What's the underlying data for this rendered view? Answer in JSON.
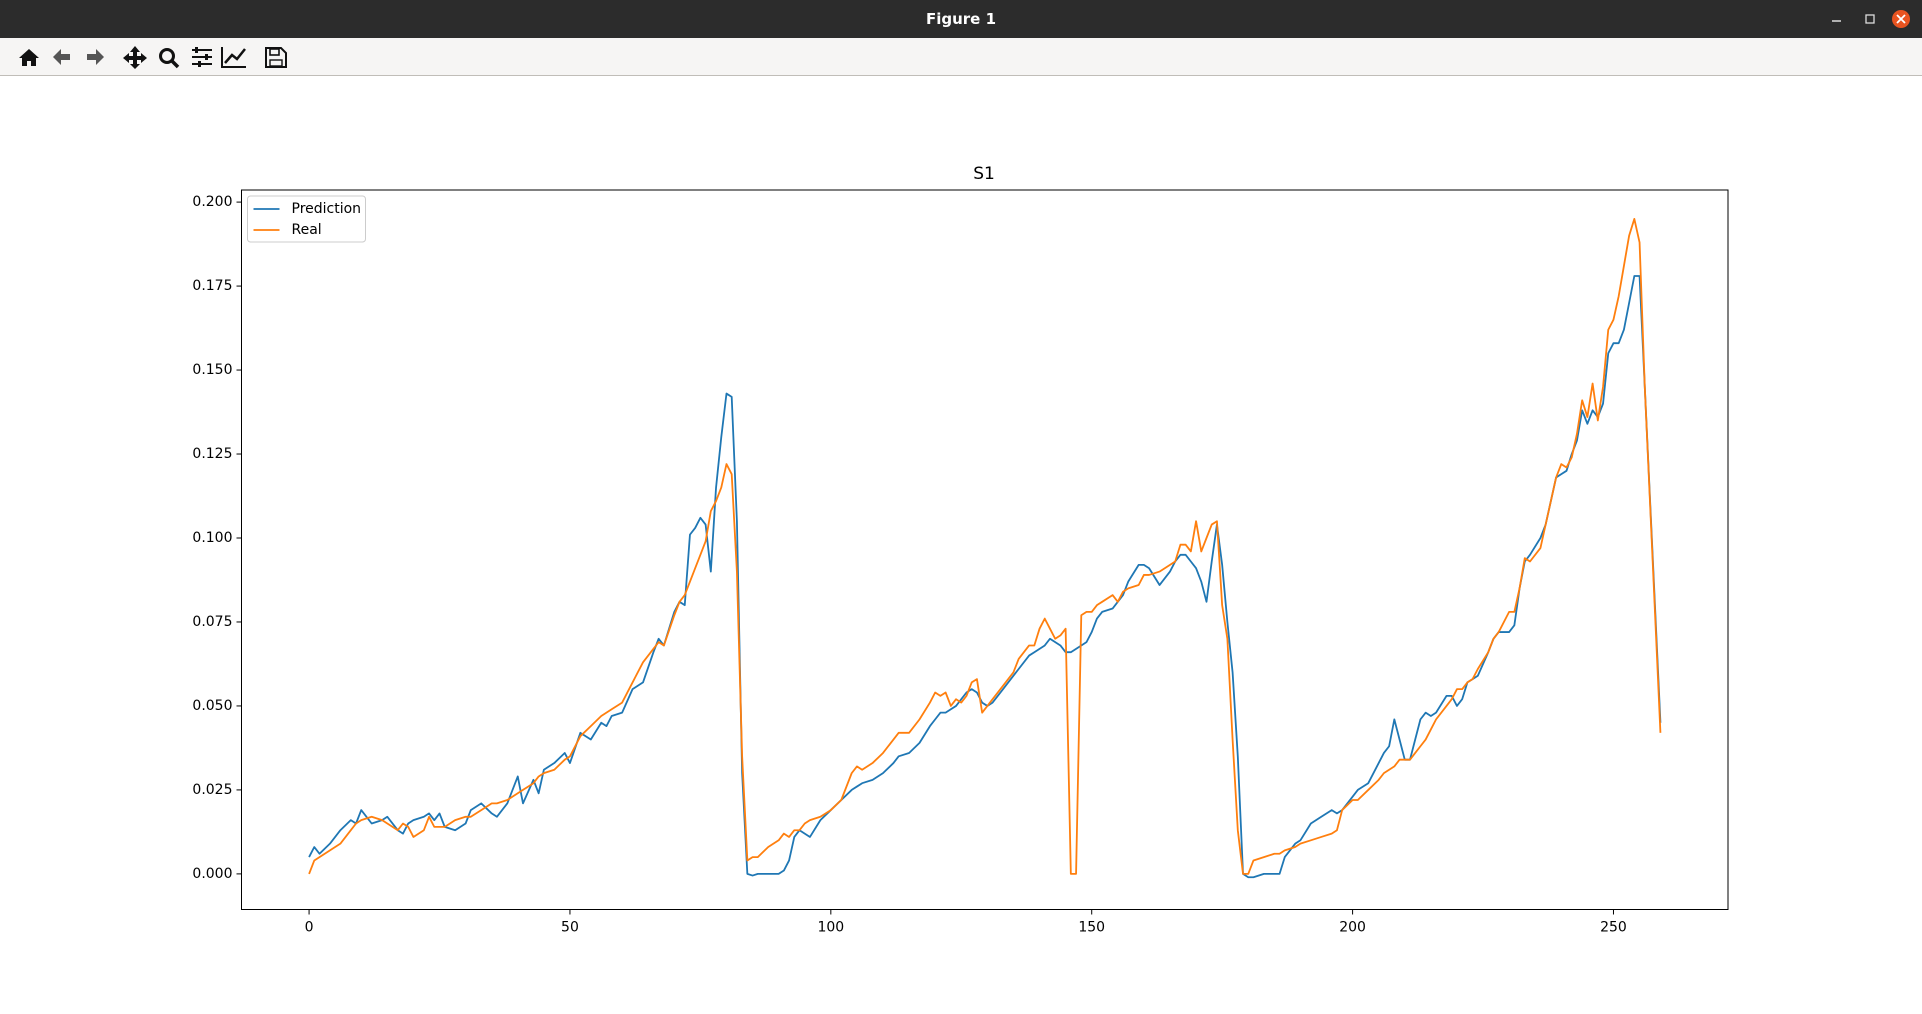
{
  "window": {
    "title": "Figure 1"
  },
  "chart_data": {
    "type": "line",
    "title": "S1",
    "x": [
      0,
      1,
      2,
      4,
      6,
      8,
      9,
      10,
      12,
      14,
      15,
      17,
      18,
      19,
      20,
      22,
      23,
      24,
      25,
      26,
      28,
      30,
      31,
      33,
      35,
      36,
      38,
      40,
      41,
      43,
      44,
      45,
      47,
      49,
      50,
      52,
      54,
      56,
      57,
      58,
      60,
      62,
      64,
      66,
      67,
      68,
      70,
      71,
      72,
      73,
      74,
      75,
      76,
      77,
      78,
      79,
      80,
      81,
      82,
      83,
      84,
      85,
      86,
      88,
      90,
      91,
      92,
      93,
      94,
      95,
      96,
      98,
      100,
      102,
      104,
      105,
      106,
      108,
      110,
      112,
      113,
      115,
      117,
      119,
      120,
      121,
      122,
      123,
      124,
      125,
      126,
      127,
      128,
      129,
      130,
      131,
      133,
      135,
      136,
      138,
      139,
      140,
      141,
      142,
      143,
      144,
      145,
      146,
      147,
      148,
      149,
      150,
      151,
      152,
      154,
      155,
      156,
      157,
      159,
      160,
      161,
      163,
      165,
      166,
      167,
      168,
      169,
      170,
      171,
      172,
      173,
      174,
      175,
      176,
      177,
      178,
      179,
      180,
      181,
      183,
      185,
      186,
      187,
      189,
      190,
      192,
      194,
      196,
      197,
      198,
      200,
      201,
      203,
      205,
      206,
      207,
      208,
      209,
      210,
      211,
      212,
      213,
      214,
      215,
      216,
      218,
      219,
      220,
      221,
      222,
      223,
      224,
      226,
      227,
      228,
      230,
      231,
      232,
      233,
      234,
      236,
      237,
      238,
      239,
      240,
      241,
      242,
      243,
      244,
      245,
      246,
      247,
      248,
      249,
      250,
      251,
      252,
      253,
      254,
      255,
      256,
      259
    ],
    "series": [
      {
        "name": "Prediction",
        "color": "#1f77b4",
        "values": [
          0.005,
          0.008,
          0.006,
          0.009,
          0.013,
          0.016,
          0.015,
          0.019,
          0.015,
          0.016,
          0.017,
          0.013,
          0.012,
          0.015,
          0.016,
          0.017,
          0.018,
          0.016,
          0.018,
          0.014,
          0.013,
          0.015,
          0.019,
          0.021,
          0.018,
          0.017,
          0.021,
          0.029,
          0.021,
          0.028,
          0.024,
          0.031,
          0.033,
          0.036,
          0.033,
          0.042,
          0.04,
          0.045,
          0.044,
          0.047,
          0.048,
          0.055,
          0.057,
          0.066,
          0.07,
          0.068,
          0.078,
          0.081,
          0.08,
          0.101,
          0.103,
          0.106,
          0.104,
          0.09,
          0.115,
          0.13,
          0.143,
          0.142,
          0.105,
          0.03,
          0.0,
          -0.0005,
          0.0,
          0.0,
          0.0,
          0.001,
          0.004,
          0.011,
          0.013,
          0.012,
          0.011,
          0.016,
          0.019,
          0.022,
          0.025,
          0.026,
          0.027,
          0.028,
          0.03,
          0.033,
          0.035,
          0.036,
          0.039,
          0.044,
          0.046,
          0.048,
          0.048,
          0.049,
          0.05,
          0.052,
          0.054,
          0.055,
          0.054,
          0.051,
          0.05,
          0.051,
          0.055,
          0.059,
          0.061,
          0.065,
          0.066,
          0.067,
          0.068,
          0.07,
          0.069,
          0.068,
          0.066,
          0.066,
          0.067,
          0.068,
          0.069,
          0.072,
          0.076,
          0.078,
          0.079,
          0.081,
          0.083,
          0.087,
          0.092,
          0.092,
          0.091,
          0.086,
          0.09,
          0.093,
          0.095,
          0.095,
          0.093,
          0.091,
          0.087,
          0.081,
          0.093,
          0.104,
          0.092,
          0.075,
          0.06,
          0.035,
          0.0,
          -0.001,
          -0.001,
          0.0,
          0.0,
          0.0,
          0.005,
          0.009,
          0.01,
          0.015,
          0.017,
          0.019,
          0.018,
          0.019,
          0.023,
          0.025,
          0.027,
          0.033,
          0.036,
          0.038,
          0.046,
          0.04,
          0.034,
          0.034,
          0.04,
          0.046,
          0.048,
          0.047,
          0.048,
          0.053,
          0.053,
          0.05,
          0.052,
          0.057,
          0.058,
          0.059,
          0.066,
          0.07,
          0.072,
          0.072,
          0.074,
          0.085,
          0.093,
          0.095,
          0.1,
          0.104,
          0.111,
          0.118,
          0.119,
          0.12,
          0.125,
          0.129,
          0.138,
          0.134,
          0.138,
          0.136,
          0.14,
          0.155,
          0.158,
          0.158,
          0.162,
          0.17,
          0.178,
          0.178,
          0.145,
          0.045
        ]
      },
      {
        "name": "Real",
        "color": "#ff7f0e",
        "values": [
          0.0,
          0.004,
          0.005,
          0.007,
          0.009,
          0.013,
          0.015,
          0.016,
          0.017,
          0.016,
          0.015,
          0.013,
          0.015,
          0.014,
          0.011,
          0.013,
          0.017,
          0.014,
          0.014,
          0.014,
          0.016,
          0.017,
          0.017,
          0.019,
          0.021,
          0.021,
          0.022,
          0.024,
          0.025,
          0.027,
          0.029,
          0.03,
          0.031,
          0.034,
          0.035,
          0.041,
          0.044,
          0.047,
          0.048,
          0.049,
          0.051,
          0.057,
          0.063,
          0.067,
          0.069,
          0.068,
          0.077,
          0.081,
          0.083,
          0.087,
          0.091,
          0.095,
          0.099,
          0.108,
          0.111,
          0.115,
          0.122,
          0.119,
          0.09,
          0.035,
          0.004,
          0.005,
          0.005,
          0.008,
          0.01,
          0.012,
          0.011,
          0.013,
          0.013,
          0.015,
          0.016,
          0.017,
          0.019,
          0.022,
          0.03,
          0.032,
          0.031,
          0.033,
          0.036,
          0.04,
          0.042,
          0.042,
          0.046,
          0.051,
          0.054,
          0.053,
          0.054,
          0.05,
          0.052,
          0.051,
          0.053,
          0.057,
          0.058,
          0.048,
          0.05,
          0.052,
          0.056,
          0.06,
          0.064,
          0.068,
          0.068,
          0.073,
          0.076,
          0.073,
          0.07,
          0.071,
          0.073,
          0.0,
          0.0,
          0.077,
          0.078,
          0.078,
          0.08,
          0.081,
          0.083,
          0.081,
          0.084,
          0.085,
          0.086,
          0.089,
          0.089,
          0.09,
          0.092,
          0.093,
          0.098,
          0.098,
          0.096,
          0.105,
          0.096,
          0.1,
          0.104,
          0.105,
          0.08,
          0.07,
          0.04,
          0.013,
          0.0,
          0.0,
          0.004,
          0.005,
          0.006,
          0.006,
          0.007,
          0.008,
          0.009,
          0.01,
          0.011,
          0.012,
          0.013,
          0.019,
          0.022,
          0.022,
          0.025,
          0.028,
          0.03,
          0.031,
          0.032,
          0.034,
          0.034,
          0.034,
          0.036,
          0.038,
          0.04,
          0.043,
          0.046,
          0.05,
          0.052,
          0.055,
          0.055,
          0.057,
          0.058,
          0.061,
          0.066,
          0.07,
          0.072,
          0.078,
          0.078,
          0.085,
          0.094,
          0.093,
          0.097,
          0.104,
          0.111,
          0.118,
          0.122,
          0.121,
          0.124,
          0.131,
          0.141,
          0.136,
          0.146,
          0.135,
          0.145,
          0.162,
          0.165,
          0.172,
          0.181,
          0.19,
          0.195,
          0.188,
          0.145,
          0.042
        ]
      }
    ],
    "xlim": [
      -12.95,
      271.95
    ],
    "xticks": [
      0,
      50,
      100,
      150,
      200,
      250
    ],
    "ylim": [
      -0.0106,
      0.2036
    ],
    "yticks": [
      {
        "value": 0,
        "label": "0.000"
      },
      {
        "value": 0.025,
        "label": "0.025"
      },
      {
        "value": 0.05,
        "label": "0.050"
      },
      {
        "value": 0.075,
        "label": "0.075"
      },
      {
        "value": 0.1,
        "label": "0.100"
      },
      {
        "value": 0.125,
        "label": "0.125"
      },
      {
        "value": 0.15,
        "label": "0.150"
      },
      {
        "value": 0.175,
        "label": "0.175"
      },
      {
        "value": 0.2,
        "label": "0.200"
      }
    ],
    "legend": "upper left",
    "grid": false
  }
}
